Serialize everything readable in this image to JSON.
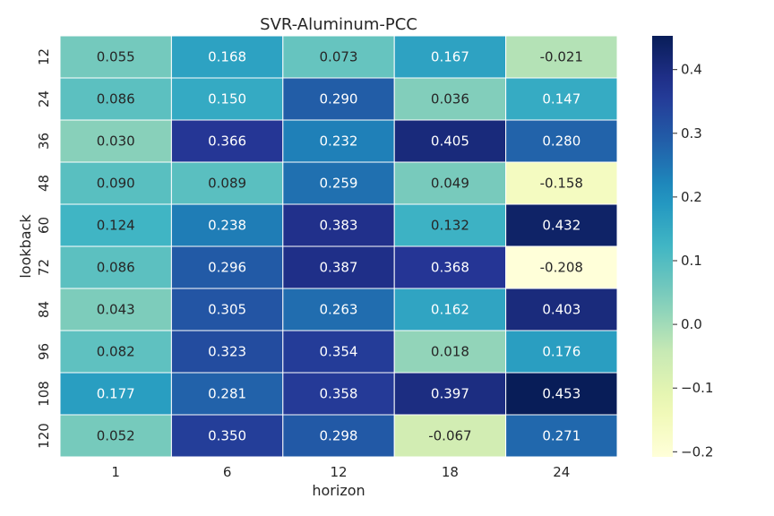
{
  "chart_data": {
    "type": "heatmap",
    "title": "SVR-Aluminum-PCC",
    "xlabel": "horizon",
    "ylabel": "lookback",
    "x_categories": [
      "1",
      "6",
      "12",
      "18",
      "24"
    ],
    "y_categories": [
      "12",
      "24",
      "36",
      "48",
      "60",
      "72",
      "84",
      "96",
      "108",
      "120"
    ],
    "values": [
      [
        0.055,
        0.168,
        0.073,
        0.167,
        -0.021
      ],
      [
        0.086,
        0.15,
        0.29,
        0.036,
        0.147
      ],
      [
        0.03,
        0.366,
        0.232,
        0.405,
        0.28
      ],
      [
        0.09,
        0.089,
        0.259,
        0.049,
        -0.158
      ],
      [
        0.124,
        0.238,
        0.383,
        0.132,
        0.432
      ],
      [
        0.086,
        0.296,
        0.387,
        0.368,
        -0.208
      ],
      [
        0.043,
        0.305,
        0.263,
        0.162,
        0.403
      ],
      [
        0.082,
        0.323,
        0.354,
        0.018,
        0.176
      ],
      [
        0.177,
        0.281,
        0.358,
        0.397,
        0.453
      ],
      [
        0.052,
        0.35,
        0.298,
        -0.067,
        0.271
      ]
    ],
    "labels": [
      [
        "0.055",
        "0.168",
        "0.073",
        "0.167",
        "-0.021"
      ],
      [
        "0.086",
        "0.150",
        "0.290",
        "0.036",
        "0.147"
      ],
      [
        "0.030",
        "0.366",
        "0.232",
        "0.405",
        "0.280"
      ],
      [
        "0.090",
        "0.089",
        "0.259",
        "0.049",
        "-0.158"
      ],
      [
        "0.124",
        "0.238",
        "0.383",
        "0.132",
        "0.432"
      ],
      [
        "0.086",
        "0.296",
        "0.387",
        "0.368",
        "-0.208"
      ],
      [
        "0.043",
        "0.305",
        "0.263",
        "0.162",
        "0.403"
      ],
      [
        "0.082",
        "0.323",
        "0.354",
        "0.018",
        "0.176"
      ],
      [
        "0.177",
        "0.281",
        "0.358",
        "0.397",
        "0.453"
      ],
      [
        "0.052",
        "0.350",
        "0.298",
        "-0.067",
        "0.271"
      ]
    ],
    "colorscale": "YlGnBu",
    "vmin": -0.208,
    "vmax": 0.453,
    "colorbar_ticks": [
      0.4,
      0.3,
      0.2,
      0.1,
      0.0,
      -0.1,
      -0.2
    ],
    "colorbar_tick_labels": [
      "0.4",
      "0.3",
      "0.2",
      "0.1",
      "0.0",
      "−0.1",
      "−0.2"
    ],
    "grid": false
  }
}
